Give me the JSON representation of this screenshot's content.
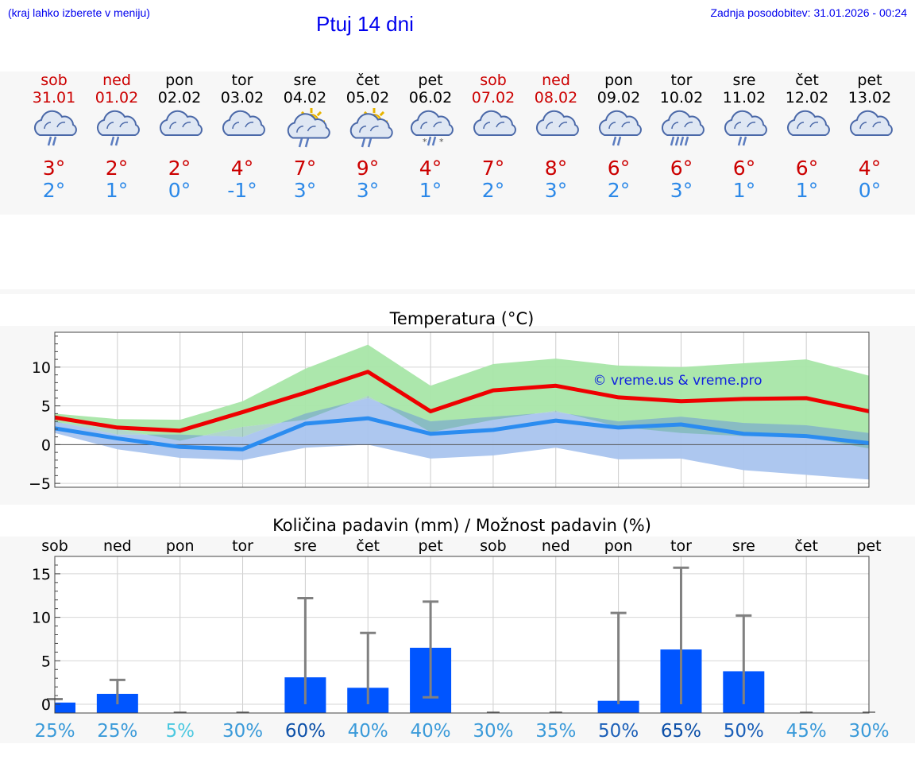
{
  "header": {
    "hint": "(kraj lahko izberete v meniju)",
    "title": "Ptuj 14 dni",
    "updated": "Zadnja posodobitev: 31.01.2026 - 00:24"
  },
  "days": [
    {
      "name": "sob",
      "date": "31.01",
      "weekend": true,
      "icon": "cloud-rain-icon",
      "max": "3°",
      "min": "2°"
    },
    {
      "name": "ned",
      "date": "01.02",
      "weekend": true,
      "icon": "cloud-rain-icon",
      "max": "2°",
      "min": "1°"
    },
    {
      "name": "pon",
      "date": "02.02",
      "weekend": false,
      "icon": "cloud-icon",
      "max": "2°",
      "min": "0°"
    },
    {
      "name": "tor",
      "date": "03.02",
      "weekend": false,
      "icon": "cloud-icon",
      "max": "4°",
      "min": "-1°"
    },
    {
      "name": "sre",
      "date": "04.02",
      "weekend": false,
      "icon": "sun-cloud-rain-icon",
      "max": "7°",
      "min": "3°"
    },
    {
      "name": "čet",
      "date": "05.02",
      "weekend": false,
      "icon": "sun-cloud-rain-icon",
      "max": "9°",
      "min": "3°"
    },
    {
      "name": "pet",
      "date": "06.02",
      "weekend": false,
      "icon": "cloud-sleet-icon",
      "max": "4°",
      "min": "1°"
    },
    {
      "name": "sob",
      "date": "07.02",
      "weekend": true,
      "icon": "cloud-icon",
      "max": "7°",
      "min": "2°"
    },
    {
      "name": "ned",
      "date": "08.02",
      "weekend": true,
      "icon": "cloud-icon",
      "max": "8°",
      "min": "3°"
    },
    {
      "name": "pon",
      "date": "09.02",
      "weekend": false,
      "icon": "cloud-rain-icon",
      "max": "6°",
      "min": "2°"
    },
    {
      "name": "tor",
      "date": "10.02",
      "weekend": false,
      "icon": "cloud-heavy-rain-icon",
      "max": "6°",
      "min": "3°"
    },
    {
      "name": "sre",
      "date": "11.02",
      "weekend": false,
      "icon": "cloud-rain-icon",
      "max": "6°",
      "min": "1°"
    },
    {
      "name": "čet",
      "date": "12.02",
      "weekend": false,
      "icon": "cloud-icon",
      "max": "6°",
      "min": "1°"
    },
    {
      "name": "pet",
      "date": "13.02",
      "weekend": false,
      "icon": "cloud-icon",
      "max": "4°",
      "min": "0°"
    }
  ],
  "colors": {
    "weekend": "#cc0000",
    "weekday": "#000000",
    "max_line": "#ee0000",
    "min_line": "#2b8cf0",
    "max_band": "#a8e6a8",
    "min_band": "#a9c4ee",
    "bar": "#0055ff",
    "whisker": "#808080"
  },
  "chart_data": [
    {
      "type": "line",
      "title": "Temperatura (°C)",
      "watermark": "© vreme.us & vreme.pro",
      "ylim": [
        -5.5,
        14.5
      ],
      "yticks": [
        "10",
        "5",
        "0",
        "−5"
      ],
      "ytick_values": [
        10,
        5,
        0,
        -5
      ],
      "grid": true,
      "x": [
        0,
        1,
        2,
        3,
        4,
        5,
        6,
        7,
        8,
        9,
        10,
        11,
        12,
        13
      ],
      "series": [
        {
          "name": "max",
          "values": [
            3.5,
            2.2,
            1.8,
            4.2,
            6.7,
            9.4,
            4.3,
            7.0,
            7.6,
            6.1,
            5.6,
            5.9,
            6.0,
            4.3
          ]
        },
        {
          "name": "min",
          "values": [
            2.1,
            0.8,
            -0.3,
            -0.6,
            2.7,
            3.4,
            1.4,
            1.9,
            3.1,
            2.2,
            2.6,
            1.4,
            1.1,
            0.2
          ]
        },
        {
          "name": "max_range_upper",
          "values": [
            4.0,
            3.3,
            3.2,
            5.6,
            9.8,
            12.9,
            7.6,
            10.4,
            11.1,
            10.2,
            10.0,
            10.5,
            11.0,
            8.9
          ]
        },
        {
          "name": "max_range_lower",
          "values": [
            2.9,
            2.0,
            0.5,
            2.3,
            3.2,
            6.3,
            1.6,
            3.2,
            4.4,
            2.3,
            1.5,
            1.1,
            1.0,
            -0.5
          ]
        },
        {
          "name": "min_range_upper",
          "values": [
            3.0,
            1.3,
            1.3,
            1.0,
            4.0,
            6.0,
            3.0,
            3.6,
            4.2,
            3.0,
            3.6,
            2.8,
            2.5,
            1.5
          ]
        },
        {
          "name": "min_range_lower",
          "values": [
            1.5,
            -0.6,
            -1.7,
            -2.0,
            -0.4,
            0.0,
            -1.8,
            -1.4,
            -0.4,
            -1.9,
            -1.8,
            -3.3,
            -3.9,
            -4.5
          ]
        }
      ]
    },
    {
      "type": "bar",
      "title": "Količina padavin (mm) / Možnost padavin (%)",
      "categories": [
        "sob",
        "ned",
        "pon",
        "tor",
        "sre",
        "čet",
        "pet",
        "sob",
        "ned",
        "pon",
        "tor",
        "sre",
        "čet",
        "pet"
      ],
      "values": [
        0.2,
        1.2,
        0,
        0,
        3.1,
        1.9,
        6.5,
        0,
        0,
        0.4,
        6.3,
        3.8,
        0,
        0
      ],
      "errors": [
        0.6,
        2.8,
        0,
        0,
        12.2,
        8.2,
        11.8,
        0,
        0,
        10.5,
        15.7,
        10.2,
        0,
        0
      ],
      "error_lows": [
        0.6,
        0,
        0,
        0,
        0,
        0,
        0.8,
        0,
        0,
        0,
        0,
        0,
        0,
        0
      ],
      "probabilities": [
        "25%",
        "25%",
        "5%",
        "30%",
        "60%",
        "40%",
        "40%",
        "30%",
        "35%",
        "50%",
        "65%",
        "50%",
        "45%",
        "30%"
      ],
      "probability_values": [
        25,
        25,
        5,
        30,
        60,
        40,
        40,
        30,
        35,
        50,
        65,
        50,
        45,
        30
      ],
      "ylim": [
        -1,
        17
      ],
      "yticks": [
        "15",
        "10",
        "5",
        "0"
      ],
      "ytick_values": [
        15,
        10,
        5,
        0
      ],
      "grid": true
    }
  ]
}
